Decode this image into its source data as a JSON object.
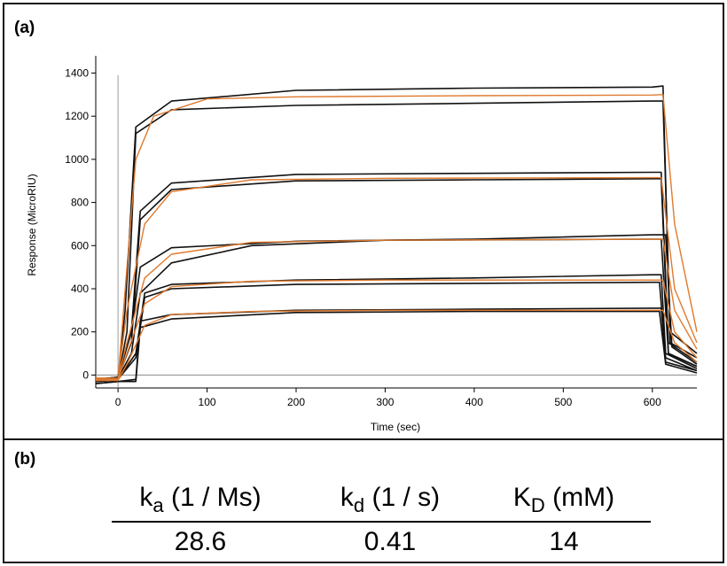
{
  "panels": {
    "a": "(a)",
    "b": "(b)"
  },
  "chart_data": {
    "type": "line",
    "xlabel": "Time (sec)",
    "ylabel": "Response (MicroRIU)",
    "xlim": [
      -25,
      650
    ],
    "ylim": [
      -60,
      1480
    ],
    "xticks": [
      0,
      100,
      200,
      300,
      400,
      500,
      600
    ],
    "yticks": [
      0,
      200,
      400,
      600,
      800,
      1000,
      1200,
      1400
    ],
    "grid": false,
    "legend": "none",
    "colors": {
      "measured": "#111111",
      "fit": "#e07a2e"
    },
    "series": [
      {
        "kind": "measured",
        "x": [
          -25,
          0,
          8,
          20,
          60,
          200,
          400,
          600,
          612,
          620,
          650
        ],
        "y": [
          -30,
          -25,
          300,
          1150,
          1270,
          1320,
          1330,
          1335,
          1340,
          150,
          80
        ]
      },
      {
        "kind": "measured",
        "x": [
          -25,
          0,
          10,
          20,
          60,
          200,
          400,
          600,
          612,
          620,
          650
        ],
        "y": [
          -30,
          -20,
          200,
          1120,
          1230,
          1250,
          1260,
          1270,
          1270,
          200,
          100
        ]
      },
      {
        "kind": "fit",
        "x": [
          -25,
          0,
          10,
          20,
          40,
          100,
          200,
          400,
          600,
          612,
          625,
          650
        ],
        "y": [
          -20,
          -20,
          500,
          1000,
          1200,
          1280,
          1290,
          1295,
          1298,
          1300,
          700,
          200
        ]
      },
      {
        "kind": "measured",
        "x": [
          -25,
          0,
          15,
          25,
          60,
          200,
          400,
          600,
          610,
          618,
          650
        ],
        "y": [
          -20,
          -10,
          200,
          760,
          890,
          930,
          935,
          940,
          940,
          150,
          60
        ]
      },
      {
        "kind": "measured",
        "x": [
          -25,
          0,
          15,
          25,
          60,
          200,
          400,
          600,
          610,
          618,
          650
        ],
        "y": [
          -20,
          -15,
          150,
          720,
          860,
          900,
          905,
          910,
          910,
          100,
          40
        ]
      },
      {
        "kind": "fit",
        "x": [
          -25,
          0,
          10,
          30,
          60,
          150,
          300,
          600,
          610,
          625,
          650
        ],
        "y": [
          -15,
          -15,
          300,
          700,
          850,
          905,
          912,
          915,
          915,
          400,
          150
        ]
      },
      {
        "kind": "measured",
        "x": [
          -25,
          0,
          15,
          25,
          60,
          200,
          400,
          600,
          615,
          622,
          650
        ],
        "y": [
          -20,
          -10,
          200,
          500,
          590,
          620,
          630,
          650,
          650,
          130,
          50
        ]
      },
      {
        "kind": "measured",
        "x": [
          -25,
          0,
          15,
          25,
          60,
          150,
          300,
          600,
          610,
          618,
          650
        ],
        "y": [
          -20,
          -15,
          100,
          380,
          520,
          600,
          625,
          630,
          630,
          100,
          40
        ]
      },
      {
        "kind": "fit",
        "x": [
          -25,
          0,
          10,
          30,
          60,
          150,
          300,
          600,
          612,
          625,
          650
        ],
        "y": [
          -15,
          -15,
          150,
          450,
          560,
          615,
          625,
          630,
          630,
          300,
          120
        ]
      },
      {
        "kind": "measured",
        "x": [
          -25,
          0,
          20,
          30,
          60,
          200,
          400,
          600,
          610,
          615,
          650
        ],
        "y": [
          -30,
          -20,
          100,
          380,
          420,
          440,
          450,
          465,
          465,
          100,
          30
        ]
      },
      {
        "kind": "measured",
        "x": [
          -25,
          0,
          20,
          30,
          60,
          200,
          400,
          600,
          608,
          615,
          650
        ],
        "y": [
          -30,
          -20,
          80,
          360,
          400,
          420,
          425,
          430,
          430,
          80,
          20
        ]
      },
      {
        "kind": "fit",
        "x": [
          -25,
          0,
          10,
          30,
          60,
          150,
          300,
          600,
          612,
          625,
          650
        ],
        "y": [
          -20,
          -20,
          100,
          330,
          410,
          435,
          440,
          440,
          440,
          200,
          80
        ]
      },
      {
        "kind": "measured",
        "x": [
          -25,
          0,
          20,
          25,
          60,
          200,
          400,
          600,
          610,
          615,
          650
        ],
        "y": [
          -40,
          -30,
          -20,
          250,
          280,
          300,
          305,
          310,
          310,
          60,
          20
        ]
      },
      {
        "kind": "measured",
        "x": [
          -25,
          0,
          20,
          25,
          60,
          200,
          400,
          600,
          608,
          615,
          650
        ],
        "y": [
          -40,
          -30,
          -30,
          220,
          260,
          290,
          295,
          295,
          295,
          50,
          10
        ]
      },
      {
        "kind": "fit",
        "x": [
          -25,
          0,
          10,
          30,
          60,
          150,
          300,
          600,
          612,
          625,
          650
        ],
        "y": [
          -25,
          -25,
          50,
          230,
          280,
          295,
          300,
          300,
          300,
          150,
          60
        ]
      }
    ]
  },
  "kinetics": {
    "headers": [
      {
        "sym": "k",
        "sub": "a",
        "unit": " (1 / Ms)"
      },
      {
        "sym": "k",
        "sub": "d",
        "unit": " (1 / s)"
      },
      {
        "sym": "K",
        "sub": "D",
        "unit": " (mM)"
      }
    ],
    "values": [
      "28.6",
      "0.41",
      "14"
    ]
  }
}
